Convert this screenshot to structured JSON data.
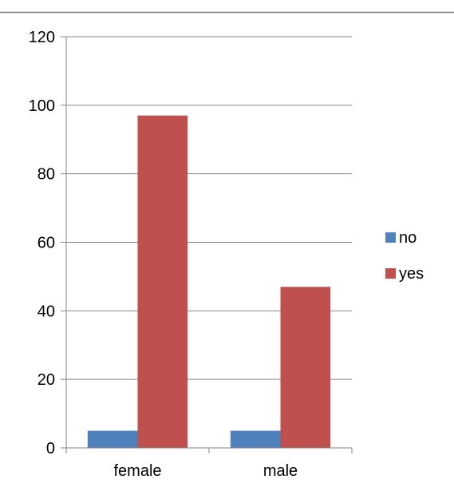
{
  "chart_data": {
    "type": "bar",
    "title": "",
    "xlabel": "",
    "ylabel": "",
    "categories": [
      "female",
      "male"
    ],
    "series": [
      {
        "name": "no",
        "values": [
          5,
          5
        ],
        "color": "#4F81BD"
      },
      {
        "name": "yes",
        "values": [
          97,
          47
        ],
        "color": "#C0504D"
      }
    ],
    "ylim": [
      0,
      120
    ],
    "yticks": [
      0,
      20,
      40,
      60,
      80,
      100,
      120
    ],
    "ytick_labels": [
      "0",
      "20",
      "40",
      "60",
      "80",
      "100",
      "120"
    ],
    "grid": true,
    "legend_position": "right",
    "axis_color": "#868686",
    "grid_color": "#868686",
    "border_color": "#7f7f7f"
  }
}
